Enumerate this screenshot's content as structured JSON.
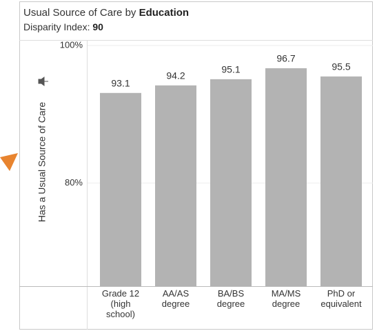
{
  "chart_data": {
    "type": "bar",
    "title": "Usual Source of Care by",
    "title_emphasis": "Education",
    "subtitle": "Disparity Index:",
    "disparity_index": 90,
    "y_label": "Has a Usual Source of Care",
    "categories": [
      [
        "Grade 12",
        "(high",
        "school)"
      ],
      [
        "AA/AS",
        "degree"
      ],
      [
        "BA/BS",
        "degree"
      ],
      [
        "MA/MS",
        "degree"
      ],
      [
        "PhD or",
        "equivalent"
      ]
    ],
    "values": [
      93.1,
      94.2,
      95.1,
      96.7,
      95.5
    ],
    "color": "#b3b3b3",
    "ylim": [
      65,
      100
    ],
    "yticks": [
      {
        "value": 80,
        "label": "80%"
      },
      {
        "value": 100,
        "label": "100%"
      }
    ],
    "grid": true
  }
}
